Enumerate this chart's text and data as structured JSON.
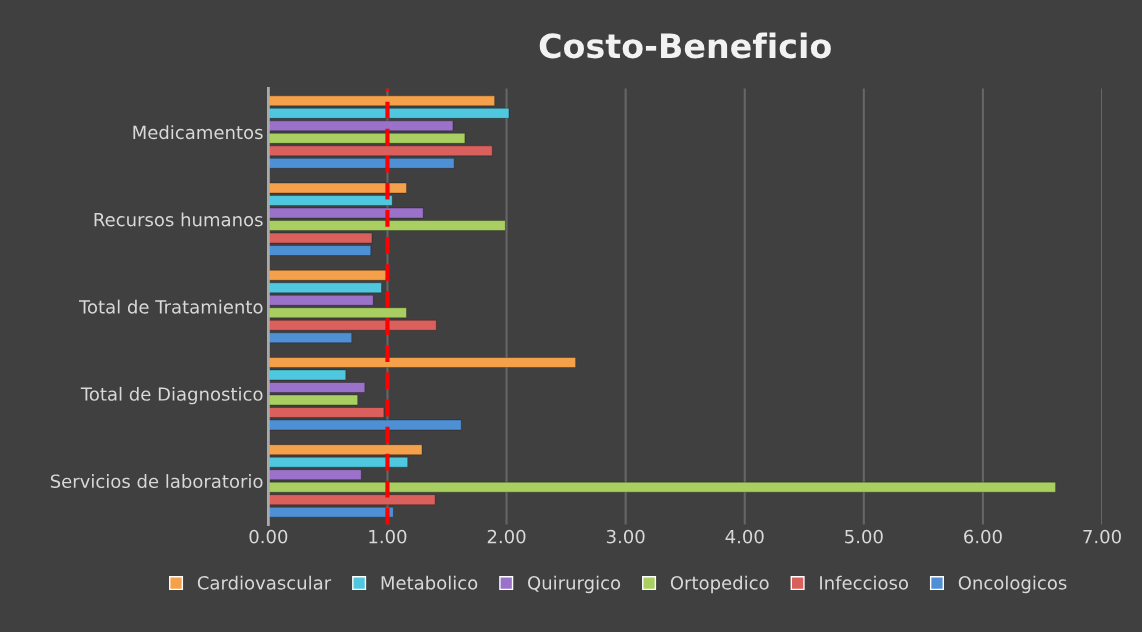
{
  "chart_data": {
    "type": "bar",
    "orientation": "horizontal",
    "title": "Costo-Beneficio",
    "categories": [
      "Medicamentos",
      "Recursos humanos",
      "Total de Tratamiento",
      "Total de Diagnostico",
      "Servicios de laboratorio"
    ],
    "series": [
      {
        "name": "Cardiovascular",
        "color": "#f5a04a",
        "values": [
          1.9,
          1.16,
          1.0,
          2.58,
          1.29
        ]
      },
      {
        "name": "Metabolico",
        "color": "#4fc8df",
        "values": [
          2.02,
          1.04,
          0.95,
          0.65,
          1.17
        ]
      },
      {
        "name": "Quirurgico",
        "color": "#9b72c9",
        "values": [
          1.55,
          1.3,
          0.88,
          0.81,
          0.78
        ]
      },
      {
        "name": "Ortopedico",
        "color": "#a9cf62",
        "values": [
          1.65,
          1.99,
          1.16,
          0.75,
          6.61
        ]
      },
      {
        "name": "Infeccioso",
        "color": "#d9605c",
        "values": [
          1.88,
          0.87,
          1.41,
          0.97,
          1.4
        ]
      },
      {
        "name": "Oncologicos",
        "color": "#4f8fd4",
        "values": [
          1.56,
          0.86,
          0.7,
          1.62,
          1.05
        ]
      }
    ],
    "xlim": [
      0,
      7
    ],
    "xticks": [
      {
        "value": 0,
        "label": "0.00"
      },
      {
        "value": 1,
        "label": "1.00"
      },
      {
        "value": 2,
        "label": "2.00"
      },
      {
        "value": 3,
        "label": "3.00"
      },
      {
        "value": 4,
        "label": "4.00"
      },
      {
        "value": 5,
        "label": "5.00"
      },
      {
        "value": 6,
        "label": "6.00"
      },
      {
        "value": 7,
        "label": "7.00"
      }
    ],
    "grid": "x",
    "legend": "bottom",
    "ref_lines": [
      {
        "axis": "x",
        "value": 1,
        "color": "#ff0000",
        "line_style": "dashed"
      }
    ]
  }
}
